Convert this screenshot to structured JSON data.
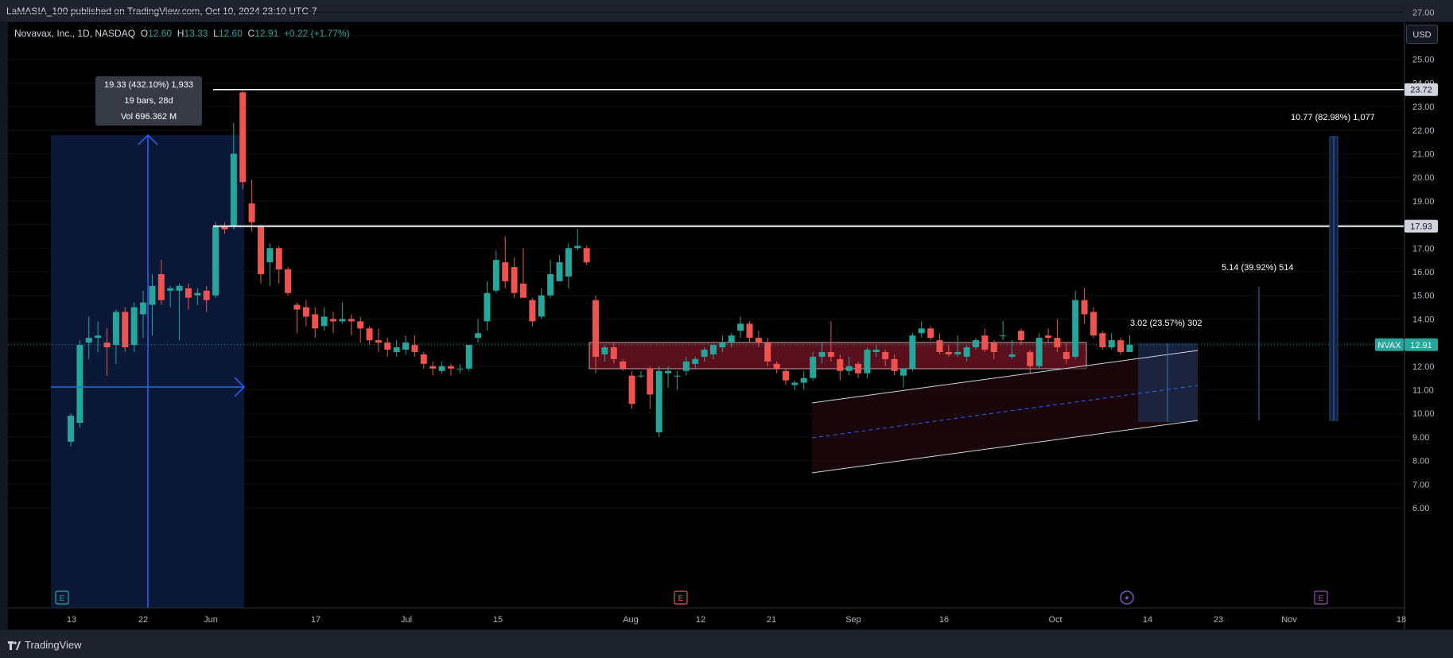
{
  "header": {
    "published_by": "LaMASIA_100 published on TradingView.com, Oct 10, 2024 23:10 UTC-7"
  },
  "legend": {
    "symbol": "Novavax, Inc., 1D, NASDAQ",
    "o_label": "O",
    "o_value": "12.60",
    "h_label": "H",
    "h_value": "13.33",
    "l_label": "L",
    "l_value": "12.60",
    "c_label": "C",
    "c_value": "12.91",
    "change": "+0.22 (+1.77%)"
  },
  "currency_button": "USD",
  "tooltip": {
    "line1": "19.33 (432.10%) 1,933",
    "line2": "19 bars, 28d",
    "line3": "Vol 696.362 M"
  },
  "measure_labels": {
    "m1": "10.77 (82.98%) 1,077",
    "m2": "5.14 (39.92%) 514",
    "m3": "3.02 (23.57%) 302"
  },
  "price_labels": {
    "level_high": "23.72",
    "level_mid": "17.93",
    "ticker": "NVAX",
    "last": "12.91"
  },
  "footer": {
    "brand": "TradingView"
  },
  "colors": {
    "up": "#26a69a",
    "down": "#ef5350",
    "background": "#131722",
    "grid": "#1e222d",
    "blue": "#2962ff"
  },
  "event_markers": [
    "E",
    "E",
    "dividend",
    "E"
  ],
  "chart_data": {
    "type": "candlestick",
    "title": "Novavax, Inc., 1D, NASDAQ",
    "y_ticks": [
      "27.00",
      "26.00",
      "25.00",
      "24.00",
      "23.00",
      "22.00",
      "21.00",
      "20.00",
      "19.00",
      "18.00",
      "17.00",
      "16.00",
      "15.00",
      "14.00",
      "13.00",
      "12.00",
      "11.00",
      "10.00",
      "9.00",
      "8.00",
      "7.00",
      "6.00"
    ],
    "x_ticks": [
      "13",
      "22",
      "Jun",
      "17",
      "Jul",
      "15",
      "Aug",
      "12",
      "21",
      "Sep",
      "16",
      "Oct",
      "14",
      "23",
      "Nov",
      "18"
    ],
    "ylim": [
      5.7,
      27.6
    ],
    "horizontal_levels": [
      23.72,
      17.93
    ],
    "last_price": 12.91,
    "candles": [
      {
        "d": "May 13",
        "o": 8.8,
        "h": 10.0,
        "l": 8.6,
        "c": 9.9
      },
      {
        "d": "May 14",
        "o": 9.6,
        "h": 13.1,
        "l": 9.4,
        "c": 12.9
      },
      {
        "d": "May 15",
        "o": 13.0,
        "h": 14.1,
        "l": 12.3,
        "c": 13.2
      },
      {
        "d": "May 16",
        "o": 13.2,
        "h": 13.9,
        "l": 12.6,
        "c": 13.3
      },
      {
        "d": "May 17",
        "o": 13.0,
        "h": 13.6,
        "l": 11.6,
        "c": 12.8
      },
      {
        "d": "May 20",
        "o": 12.9,
        "h": 14.4,
        "l": 12.1,
        "c": 14.3
      },
      {
        "d": "May 21",
        "o": 14.3,
        "h": 14.5,
        "l": 12.6,
        "c": 12.8
      },
      {
        "d": "May 22",
        "o": 12.9,
        "h": 14.7,
        "l": 12.6,
        "c": 14.5
      },
      {
        "d": "May 23",
        "o": 14.2,
        "h": 15.2,
        "l": 13.2,
        "c": 14.7
      },
      {
        "d": "May 24",
        "o": 14.6,
        "h": 15.9,
        "l": 13.3,
        "c": 15.4
      },
      {
        "d": "May 28",
        "o": 15.9,
        "h": 16.5,
        "l": 14.6,
        "c": 14.8
      },
      {
        "d": "May 29",
        "o": 15.2,
        "h": 15.4,
        "l": 14.5,
        "c": 15.3
      },
      {
        "d": "May 30",
        "o": 15.2,
        "h": 15.5,
        "l": 13.1,
        "c": 15.4
      },
      {
        "d": "May 31",
        "o": 15.3,
        "h": 15.5,
        "l": 14.4,
        "c": 14.9
      },
      {
        "d": "Jun 3",
        "o": 15.0,
        "h": 15.3,
        "l": 14.6,
        "c": 15.1
      },
      {
        "d": "Jun 4",
        "o": 15.2,
        "h": 15.4,
        "l": 14.3,
        "c": 14.8
      },
      {
        "d": "Jun 5",
        "o": 15.0,
        "h": 18.1,
        "l": 14.9,
        "c": 17.9
      },
      {
        "d": "Jun 6",
        "o": 17.9,
        "h": 18.1,
        "l": 17.6,
        "c": 17.8
      },
      {
        "d": "Jun 7",
        "o": 17.9,
        "h": 22.3,
        "l": 17.8,
        "c": 21.0
      },
      {
        "d": "Jun 10",
        "o": 23.6,
        "h": 23.7,
        "l": 19.5,
        "c": 19.8
      },
      {
        "d": "Jun 11",
        "o": 18.9,
        "h": 19.9,
        "l": 17.7,
        "c": 18.1
      },
      {
        "d": "Jun 12",
        "o": 17.9,
        "h": 18.0,
        "l": 15.5,
        "c": 15.9
      },
      {
        "d": "Jun 13",
        "o": 16.4,
        "h": 17.2,
        "l": 15.4,
        "c": 17.0
      },
      {
        "d": "Jun 14",
        "o": 17.0,
        "h": 17.1,
        "l": 15.5,
        "c": 16.1
      },
      {
        "d": "Jun 17",
        "o": 16.1,
        "h": 16.2,
        "l": 15.0,
        "c": 15.1
      },
      {
        "d": "Jun 18",
        "o": 14.6,
        "h": 14.7,
        "l": 13.4,
        "c": 14.4
      },
      {
        "d": "Jun 20",
        "o": 14.5,
        "h": 14.8,
        "l": 13.7,
        "c": 14.1
      },
      {
        "d": "Jun 21",
        "o": 14.2,
        "h": 14.5,
        "l": 13.2,
        "c": 13.6
      },
      {
        "d": "Jun 24",
        "o": 13.7,
        "h": 14.5,
        "l": 13.5,
        "c": 14.1
      },
      {
        "d": "Jun 25",
        "o": 14.0,
        "h": 14.3,
        "l": 13.4,
        "c": 13.9
      },
      {
        "d": "Jun 26",
        "o": 13.9,
        "h": 14.7,
        "l": 13.8,
        "c": 14.0
      },
      {
        "d": "Jun 27",
        "o": 14.0,
        "h": 14.2,
        "l": 13.3,
        "c": 13.9
      },
      {
        "d": "Jun 28",
        "o": 13.9,
        "h": 14.1,
        "l": 13.0,
        "c": 13.6
      },
      {
        "d": "Jul 1",
        "o": 13.6,
        "h": 13.7,
        "l": 12.9,
        "c": 13.1
      },
      {
        "d": "Jul 2",
        "o": 13.1,
        "h": 13.6,
        "l": 12.6,
        "c": 13.0
      },
      {
        "d": "Jul 3",
        "o": 13.0,
        "h": 13.2,
        "l": 12.4,
        "c": 12.7
      },
      {
        "d": "Jul 5",
        "o": 12.6,
        "h": 13.1,
        "l": 12.4,
        "c": 12.8
      },
      {
        "d": "Jul 8",
        "o": 12.7,
        "h": 13.3,
        "l": 12.5,
        "c": 13.0
      },
      {
        "d": "Jul 9",
        "o": 12.9,
        "h": 13.3,
        "l": 12.4,
        "c": 12.6
      },
      {
        "d": "Jul 10",
        "o": 12.5,
        "h": 12.6,
        "l": 11.9,
        "c": 12.1
      },
      {
        "d": "Jul 11",
        "o": 12.0,
        "h": 12.2,
        "l": 11.6,
        "c": 11.9
      },
      {
        "d": "Jul 12",
        "o": 11.8,
        "h": 12.2,
        "l": 11.7,
        "c": 12.0
      },
      {
        "d": "Jul 15",
        "o": 12.0,
        "h": 12.1,
        "l": 11.6,
        "c": 11.9
      },
      {
        "d": "Jul 16",
        "o": 11.9,
        "h": 12.1,
        "l": 11.7,
        "c": 11.9
      },
      {
        "d": "Jul 17",
        "o": 11.9,
        "h": 12.9,
        "l": 11.8,
        "c": 12.9
      },
      {
        "d": "Jul 18",
        "o": 13.2,
        "h": 14.0,
        "l": 13.0,
        "c": 13.4
      },
      {
        "d": "Jul 19",
        "o": 13.9,
        "h": 15.6,
        "l": 13.5,
        "c": 15.1
      },
      {
        "d": "Jul 22",
        "o": 15.2,
        "h": 16.9,
        "l": 15.1,
        "c": 16.5
      },
      {
        "d": "Jul 23",
        "o": 16.4,
        "h": 17.5,
        "l": 15.3,
        "c": 15.6
      },
      {
        "d": "Jul 24",
        "o": 16.2,
        "h": 16.6,
        "l": 14.9,
        "c": 15.1
      },
      {
        "d": "Jul 25",
        "o": 15.5,
        "h": 17.0,
        "l": 14.9,
        "c": 14.9
      },
      {
        "d": "Jul 26",
        "o": 14.8,
        "h": 14.9,
        "l": 13.7,
        "c": 13.9
      },
      {
        "d": "Jul 29",
        "o": 14.1,
        "h": 15.3,
        "l": 14.0,
        "c": 15.0
      },
      {
        "d": "Jul 30",
        "o": 15.0,
        "h": 16.5,
        "l": 14.9,
        "c": 15.9
      },
      {
        "d": "Jul 31",
        "o": 15.6,
        "h": 16.7,
        "l": 15.6,
        "c": 16.4
      },
      {
        "d": "Aug 1",
        "o": 15.8,
        "h": 17.2,
        "l": 15.3,
        "c": 17.0
      },
      {
        "d": "Aug 2",
        "o": 17.0,
        "h": 17.8,
        "l": 16.9,
        "c": 17.1
      },
      {
        "d": "Aug 5",
        "o": 17.0,
        "h": 17.1,
        "l": 16.3,
        "c": 16.4
      },
      {
        "d": "Aug 6",
        "o": 14.8,
        "h": 15.0,
        "l": 11.7,
        "c": 12.4
      },
      {
        "d": "Aug 7",
        "o": 12.5,
        "h": 12.9,
        "l": 12.2,
        "c": 12.8
      },
      {
        "d": "Aug 8",
        "o": 12.8,
        "h": 13.0,
        "l": 12.1,
        "c": 12.3
      },
      {
        "d": "Aug 9",
        "o": 12.2,
        "h": 12.3,
        "l": 11.8,
        "c": 11.9
      },
      {
        "d": "Aug 12",
        "o": 11.6,
        "h": 11.8,
        "l": 10.2,
        "c": 10.4
      },
      {
        "d": "Aug 13",
        "o": 11.6,
        "h": 11.8,
        "l": 11.5,
        "c": 11.6
      },
      {
        "d": "Aug 14",
        "o": 11.9,
        "h": 12.0,
        "l": 10.2,
        "c": 10.8
      },
      {
        "d": "Aug 15",
        "o": 9.2,
        "h": 12.0,
        "l": 9.0,
        "c": 11.8
      },
      {
        "d": "Aug 16",
        "o": 11.7,
        "h": 12.0,
        "l": 11.1,
        "c": 11.8
      },
      {
        "d": "Aug 19",
        "o": 11.6,
        "h": 11.8,
        "l": 11.0,
        "c": 11.6
      },
      {
        "d": "Aug 20",
        "o": 11.8,
        "h": 12.4,
        "l": 11.6,
        "c": 12.2
      },
      {
        "d": "Aug 21",
        "o": 12.1,
        "h": 12.4,
        "l": 11.9,
        "c": 12.3
      },
      {
        "d": "Aug 22",
        "o": 12.4,
        "h": 12.8,
        "l": 12.2,
        "c": 12.7
      },
      {
        "d": "Aug 23",
        "o": 12.5,
        "h": 12.9,
        "l": 12.3,
        "c": 12.9
      },
      {
        "d": "Aug 26",
        "o": 12.8,
        "h": 13.3,
        "l": 12.6,
        "c": 13.0
      },
      {
        "d": "Aug 27",
        "o": 13.0,
        "h": 13.4,
        "l": 12.8,
        "c": 13.3
      },
      {
        "d": "Aug 28",
        "o": 13.5,
        "h": 14.1,
        "l": 13.2,
        "c": 13.8
      },
      {
        "d": "Aug 29",
        "o": 13.8,
        "h": 13.9,
        "l": 13.0,
        "c": 13.2
      },
      {
        "d": "Aug 30",
        "o": 13.2,
        "h": 13.5,
        "l": 12.8,
        "c": 13.0
      },
      {
        "d": "Sep 3",
        "o": 13.0,
        "h": 13.2,
        "l": 12.0,
        "c": 12.2
      },
      {
        "d": "Sep 4",
        "o": 12.1,
        "h": 12.2,
        "l": 11.7,
        "c": 11.9
      },
      {
        "d": "Sep 5",
        "o": 11.8,
        "h": 11.9,
        "l": 11.2,
        "c": 11.4
      },
      {
        "d": "Sep 6",
        "o": 11.2,
        "h": 11.4,
        "l": 11.0,
        "c": 11.3
      },
      {
        "d": "Sep 9",
        "o": 11.3,
        "h": 11.8,
        "l": 11.0,
        "c": 11.5
      },
      {
        "d": "Sep 10",
        "o": 11.5,
        "h": 12.6,
        "l": 11.4,
        "c": 12.4
      },
      {
        "d": "Sep 11",
        "o": 12.4,
        "h": 13.0,
        "l": 12.1,
        "c": 12.6
      },
      {
        "d": "Sep 12",
        "o": 12.6,
        "h": 13.9,
        "l": 12.2,
        "c": 12.4
      },
      {
        "d": "Sep 13",
        "o": 12.3,
        "h": 12.5,
        "l": 11.4,
        "c": 11.8
      },
      {
        "d": "Sep 16",
        "o": 11.8,
        "h": 12.4,
        "l": 11.6,
        "c": 12.0
      },
      {
        "d": "Sep 17",
        "o": 12.1,
        "h": 12.2,
        "l": 11.5,
        "c": 11.7
      },
      {
        "d": "Sep 18",
        "o": 11.7,
        "h": 12.8,
        "l": 11.5,
        "c": 12.7
      },
      {
        "d": "Sep 19",
        "o": 12.6,
        "h": 12.9,
        "l": 12.4,
        "c": 12.7
      },
      {
        "d": "Sep 20",
        "o": 12.6,
        "h": 12.7,
        "l": 12.0,
        "c": 12.3
      },
      {
        "d": "Sep 23",
        "o": 12.3,
        "h": 12.5,
        "l": 11.6,
        "c": 11.8
      },
      {
        "d": "Sep 24",
        "o": 11.6,
        "h": 11.9,
        "l": 11.1,
        "c": 11.9
      },
      {
        "d": "Sep 25",
        "o": 11.9,
        "h": 13.4,
        "l": 11.8,
        "c": 13.3
      },
      {
        "d": "Sep 26",
        "o": 13.4,
        "h": 13.9,
        "l": 13.2,
        "c": 13.6
      },
      {
        "d": "Sep 27",
        "o": 13.6,
        "h": 13.7,
        "l": 13.1,
        "c": 13.2
      },
      {
        "d": "Sep 30",
        "o": 13.1,
        "h": 13.4,
        "l": 12.5,
        "c": 12.6
      },
      {
        "d": "Oct 1",
        "o": 12.6,
        "h": 12.9,
        "l": 12.4,
        "c": 12.5
      },
      {
        "d": "Oct 2",
        "o": 12.5,
        "h": 13.3,
        "l": 12.4,
        "c": 12.6
      },
      {
        "d": "Oct 3",
        "o": 12.4,
        "h": 12.9,
        "l": 12.2,
        "c": 12.8
      },
      {
        "d": "Oct 4",
        "o": 12.8,
        "h": 13.2,
        "l": 12.7,
        "c": 13.1
      },
      {
        "d": "Oct 7",
        "o": 13.3,
        "h": 13.6,
        "l": 12.6,
        "c": 12.7
      },
      {
        "d": "Oct 8",
        "o": 13.0,
        "h": 13.1,
        "l": 12.3,
        "c": 12.6
      },
      {
        "d": "Oct 9",
        "o": 13.3,
        "h": 13.9,
        "l": 13.1,
        "c": 13.3
      },
      {
        "d": "Oct 10",
        "o": 12.4,
        "h": 13.1,
        "l": 12.3,
        "c": 12.5
      },
      {
        "d": "Oct 11",
        "o": 13.5,
        "h": 13.6,
        "l": 12.9,
        "c": 13.1
      },
      {
        "d": "Oct 14",
        "o": 12.6,
        "h": 12.7,
        "l": 11.7,
        "c": 12.0
      },
      {
        "d": "Oct 15",
        "o": 12.0,
        "h": 13.4,
        "l": 11.9,
        "c": 13.2
      },
      {
        "d": "Oct 16",
        "o": 13.3,
        "h": 13.6,
        "l": 13.0,
        "c": 13.2
      },
      {
        "d": "Oct 17",
        "o": 13.2,
        "h": 14.0,
        "l": 12.6,
        "c": 12.8
      },
      {
        "d": "Oct 18",
        "o": 12.6,
        "h": 13.0,
        "l": 12.1,
        "c": 12.3
      },
      {
        "d": "Oct 21",
        "o": 12.4,
        "h": 15.2,
        "l": 12.3,
        "c": 14.8
      },
      {
        "d": "Oct 22",
        "o": 14.8,
        "h": 15.3,
        "l": 13.8,
        "c": 14.2
      },
      {
        "d": "Oct 23",
        "o": 14.3,
        "h": 14.5,
        "l": 13.2,
        "c": 13.3
      },
      {
        "d": "Oct 24",
        "o": 13.4,
        "h": 13.5,
        "l": 12.7,
        "c": 12.8
      },
      {
        "d": "Oct 25",
        "o": 12.8,
        "h": 13.4,
        "l": 12.7,
        "c": 13.1
      },
      {
        "d": "Oct 28",
        "o": 13.1,
        "h": 13.2,
        "l": 12.5,
        "c": 12.6
      },
      {
        "d": "Oct 29",
        "o": 12.6,
        "h": 13.3,
        "l": 12.6,
        "c": 12.91
      }
    ]
  }
}
